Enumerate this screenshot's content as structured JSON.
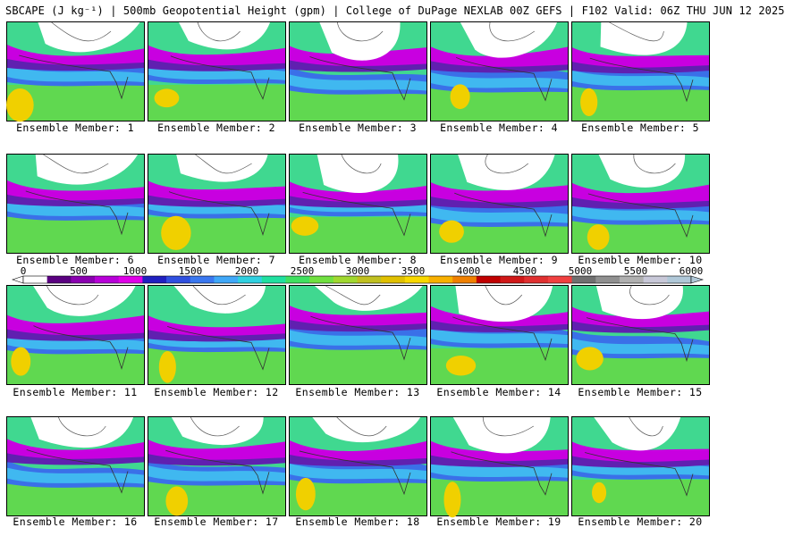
{
  "header": {
    "title": "SBCAPE (J kg⁻¹) | 500mb Geopotential Height (gpm) | College of DuPage NEXLAB 00Z GEFS | F102 Valid: 06Z THU JUN 12 2025"
  },
  "colorbar": {
    "min": 0,
    "max": 6000,
    "ticks": [
      "0",
      "500",
      "1000",
      "1500",
      "2000",
      "2500",
      "3000",
      "3500",
      "4000",
      "4500",
      "5000",
      "5500",
      "6000"
    ],
    "colors": [
      "#ffffff",
      "#5a0080",
      "#8a00b0",
      "#b800d8",
      "#e000e8",
      "#2020c0",
      "#3050e0",
      "#3a78f0",
      "#40a8f8",
      "#30d0e0",
      "#20e0a0",
      "#40e060",
      "#70e040",
      "#a0d830",
      "#c0c020",
      "#e0c000",
      "#f8d800",
      "#f8b000",
      "#f08000",
      "#c00000",
      "#d01818",
      "#e03030",
      "#f04040",
      "#707070",
      "#909090",
      "#b0b0b0",
      "#c8c8d8",
      "#b0c8d8"
    ]
  },
  "members": [
    {
      "label": "Ensemble Member: 1"
    },
    {
      "label": "Ensemble Member: 2"
    },
    {
      "label": "Ensemble Member: 3"
    },
    {
      "label": "Ensemble Member: 4"
    },
    {
      "label": "Ensemble Member: 5"
    },
    {
      "label": "Ensemble Member: 6"
    },
    {
      "label": "Ensemble Member: 7"
    },
    {
      "label": "Ensemble Member: 8"
    },
    {
      "label": "Ensemble Member: 9"
    },
    {
      "label": "Ensemble Member: 10"
    },
    {
      "label": "Ensemble Member: 11"
    },
    {
      "label": "Ensemble Member: 12"
    },
    {
      "label": "Ensemble Member: 13"
    },
    {
      "label": "Ensemble Member: 14"
    },
    {
      "label": "Ensemble Member: 15"
    },
    {
      "label": "Ensemble Member: 16"
    },
    {
      "label": "Ensemble Member: 17"
    },
    {
      "label": "Ensemble Member: 18"
    },
    {
      "label": "Ensemble Member: 19"
    },
    {
      "label": "Ensemble Member: 20"
    }
  ]
}
